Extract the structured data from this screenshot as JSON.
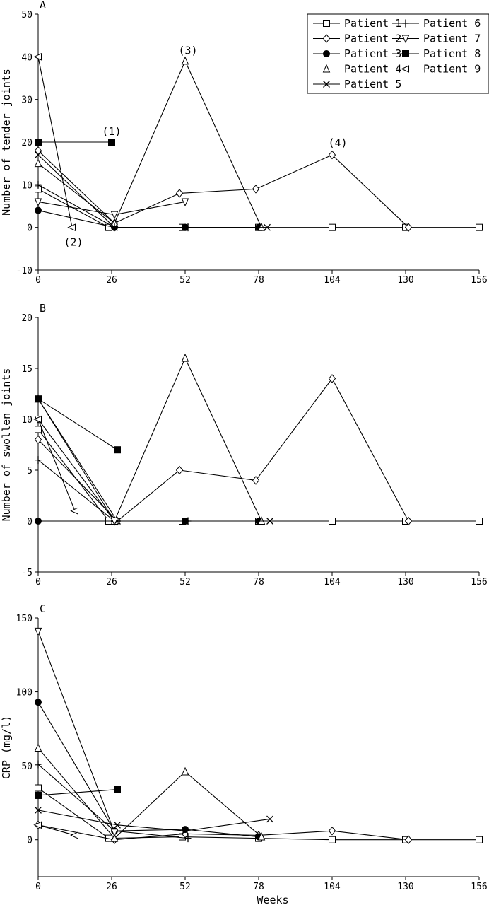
{
  "chart_data": [
    {
      "type": "line",
      "panel_label": "A",
      "xlabel": "",
      "ylabel": "Number of tender joints",
      "xlim": [
        0,
        156
      ],
      "ylim": [
        -10,
        50
      ],
      "xticks": [
        0,
        26,
        52,
        78,
        104,
        130,
        156
      ],
      "yticks": [
        -10,
        0,
        10,
        20,
        30,
        40,
        50
      ],
      "legend": {
        "placement": "top-right",
        "entries": [
          {
            "label": "Patient 1",
            "marker": "square-open"
          },
          {
            "label": "Patient 2",
            "marker": "diamond-open"
          },
          {
            "label": "Patient 3",
            "marker": "circle-filled"
          },
          {
            "label": "Patient 4",
            "marker": "triangle-up-open"
          },
          {
            "label": "Patient 5",
            "marker": "x"
          },
          {
            "label": "Patient 6",
            "marker": "plus"
          },
          {
            "label": "Patient 7",
            "marker": "triangle-down-open"
          },
          {
            "label": "Patient 8",
            "marker": "square-filled"
          },
          {
            "label": "Patient 9",
            "marker": "triangle-left-open"
          }
        ]
      },
      "annotations": [
        {
          "text": "(1)",
          "x": 26,
          "y": 20
        },
        {
          "text": "(2)",
          "x": 13,
          "y": 0
        },
        {
          "text": "(3)",
          "x": 52,
          "y": 39
        },
        {
          "text": "(4)",
          "x": 104,
          "y": 17
        }
      ],
      "series": [
        {
          "marker": "square-open",
          "x": [
            0,
            25,
            51,
            78,
            104,
            130,
            156
          ],
          "y": [
            9,
            0,
            0,
            0,
            0,
            0,
            0
          ]
        },
        {
          "marker": "diamond-open",
          "x": [
            0,
            27,
            50,
            77,
            104,
            131
          ],
          "y": [
            18,
            1,
            8,
            9,
            17,
            0
          ]
        },
        {
          "marker": "circle-filled",
          "x": [
            0,
            27,
            52,
            78
          ],
          "y": [
            4,
            0,
            0,
            0
          ]
        },
        {
          "marker": "triangle-up-open",
          "x": [
            0,
            27,
            52,
            79
          ],
          "y": [
            15,
            1,
            39,
            0
          ]
        },
        {
          "marker": "x",
          "x": [
            0,
            27,
            52,
            81
          ],
          "y": [
            17,
            0,
            0,
            0
          ]
        },
        {
          "marker": "plus",
          "x": [
            0,
            27,
            53
          ],
          "y": [
            10,
            0,
            0
          ]
        },
        {
          "marker": "triangle-down-open",
          "x": [
            0,
            27,
            52
          ],
          "y": [
            6,
            3,
            6
          ]
        },
        {
          "marker": "square-filled",
          "x": [
            0,
            26
          ],
          "y": [
            20,
            20
          ]
        },
        {
          "marker": "triangle-left-open",
          "x": [
            0,
            12
          ],
          "y": [
            40,
            0
          ]
        }
      ]
    },
    {
      "type": "line",
      "panel_label": "B",
      "xlabel": "",
      "ylabel": "Number of swollen joints",
      "xlim": [
        0,
        156
      ],
      "ylim": [
        -5,
        20
      ],
      "xticks": [
        0,
        26,
        52,
        78,
        104,
        130,
        156
      ],
      "yticks": [
        -5,
        0,
        5,
        10,
        15,
        20
      ],
      "series": [
        {
          "marker": "square-open",
          "x": [
            0,
            25,
            51,
            78,
            104,
            130,
            156
          ],
          "y": [
            9,
            0,
            0,
            0,
            0,
            0,
            0
          ]
        },
        {
          "marker": "diamond-open",
          "x": [
            0,
            28,
            50,
            77,
            104,
            131
          ],
          "y": [
            8,
            0,
            5,
            4,
            14,
            0
          ]
        },
        {
          "marker": "circle-filled",
          "x": [
            0,
            27,
            52,
            78
          ],
          "y": [
            0,
            0,
            0,
            0
          ]
        },
        {
          "marker": "triangle-up-open",
          "x": [
            0,
            27,
            52,
            79
          ],
          "y": [
            12,
            0,
            16,
            0
          ]
        },
        {
          "marker": "x",
          "x": [
            0,
            28,
            52,
            82
          ],
          "y": [
            12,
            0,
            0,
            0
          ]
        },
        {
          "marker": "plus",
          "x": [
            0,
            27,
            53
          ],
          "y": [
            6,
            0,
            0
          ]
        },
        {
          "marker": "triangle-down-open",
          "x": [
            0,
            27
          ],
          "y": [
            10,
            0
          ]
        },
        {
          "marker": "square-filled",
          "x": [
            0,
            28
          ],
          "y": [
            12,
            7
          ]
        },
        {
          "marker": "triangle-left-open",
          "x": [
            0,
            13
          ],
          "y": [
            10,
            1
          ]
        }
      ]
    },
    {
      "type": "line",
      "panel_label": "C",
      "xlabel": "Weeks",
      "ylabel": "CRP (mg/l)",
      "xlim": [
        0,
        156
      ],
      "ylim": [
        -25,
        150
      ],
      "xticks": [
        0,
        26,
        52,
        78,
        104,
        130,
        156
      ],
      "yticks": [
        0,
        50,
        100,
        150
      ],
      "series": [
        {
          "marker": "square-open",
          "x": [
            0,
            25,
            51,
            78,
            104,
            130,
            156
          ],
          "y": [
            35,
            1,
            2,
            1,
            0,
            0,
            0
          ]
        },
        {
          "marker": "diamond-open",
          "x": [
            0,
            27,
            52,
            78,
            104,
            131
          ],
          "y": [
            10,
            0,
            4,
            3,
            6,
            0
          ]
        },
        {
          "marker": "circle-filled",
          "x": [
            0,
            27,
            52,
            78
          ],
          "y": [
            93,
            6,
            7,
            2
          ]
        },
        {
          "marker": "triangle-up-open",
          "x": [
            0,
            27,
            52,
            79
          ],
          "y": [
            62,
            1,
            46,
            2
          ]
        },
        {
          "marker": "x",
          "x": [
            0,
            28,
            52,
            82
          ],
          "y": [
            20,
            10,
            6,
            14
          ]
        },
        {
          "marker": "plus",
          "x": [
            0,
            27,
            53
          ],
          "y": [
            51,
            6,
            1
          ]
        },
        {
          "marker": "triangle-down-open",
          "x": [
            0,
            27
          ],
          "y": [
            141,
            5
          ]
        },
        {
          "marker": "square-filled",
          "x": [
            0,
            28
          ],
          "y": [
            30,
            34
          ]
        },
        {
          "marker": "triangle-left-open",
          "x": [
            0,
            13
          ],
          "y": [
            10,
            3
          ]
        }
      ]
    }
  ]
}
